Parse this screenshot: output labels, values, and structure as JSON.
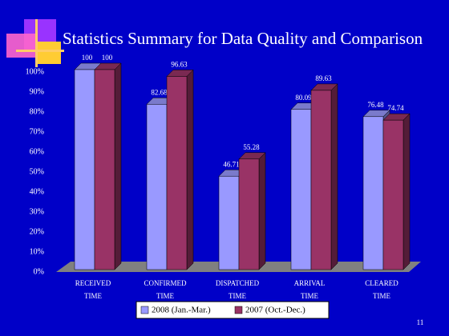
{
  "chart_data": {
    "type": "bar3d",
    "title": "Statistics Summary for Data Quality and Comparison",
    "page_number": "11",
    "categories": [
      "RECEIVED TIME",
      "CONFIRMED TIME",
      "DISPATCHED TIME",
      "ARRIVAL TIME",
      "CLEARED TIME"
    ],
    "series": [
      {
        "name": "2008 (Jan.-Mar.)",
        "color": "#9999ff",
        "values": [
          100,
          82.68,
          46.71,
          80.09,
          76.48
        ]
      },
      {
        "name": "2007 (Oct.-Dec.)",
        "color": "#993366",
        "values": [
          100,
          96.63,
          55.28,
          89.63,
          74.74
        ]
      }
    ],
    "ylim": [
      0,
      100
    ],
    "yticks": [
      {
        "value": 0,
        "label": "0%"
      },
      {
        "value": 10,
        "label": "10%"
      },
      {
        "value": 20,
        "label": "20%"
      },
      {
        "value": 30,
        "label": "30%"
      },
      {
        "value": 40,
        "label": "40%"
      },
      {
        "value": 50,
        "label": "50%"
      },
      {
        "value": 60,
        "label": "60%"
      },
      {
        "value": 70,
        "label": "70%"
      },
      {
        "value": 80,
        "label": "80%"
      },
      {
        "value": 90,
        "label": "90%"
      },
      {
        "value": 100,
        "label": "100%"
      }
    ],
    "legend": "bottom"
  }
}
